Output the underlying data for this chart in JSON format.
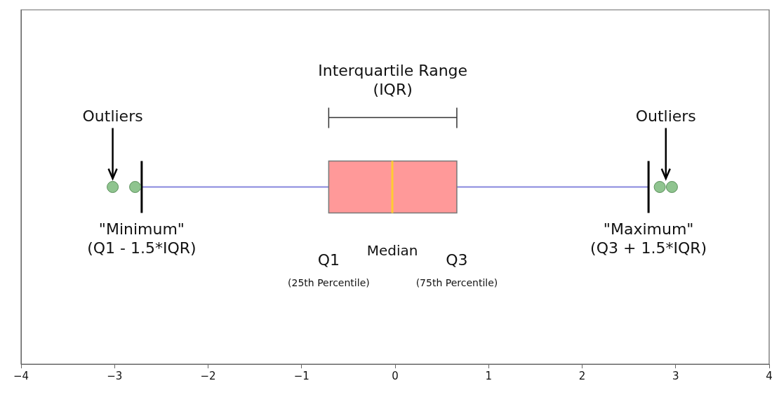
{
  "chart_data": {
    "type": "box",
    "orientation": "horizontal",
    "categories": [
      null
    ],
    "boxes": [
      {
        "low": -2.71,
        "q1": -0.71,
        "median": -0.03,
        "q3": 0.66,
        "high": 2.71,
        "outliers": [
          -3.02,
          -2.78,
          2.83,
          2.96
        ]
      }
    ],
    "color": "#ff9999",
    "marker": "circle",
    "grid": false,
    "tick_labels": "x",
    "xlim": [
      -4,
      4
    ],
    "xticks": [
      {
        "value": -4,
        "label": "−4"
      },
      {
        "value": -3,
        "label": "−3"
      },
      {
        "value": -2,
        "label": "−2"
      },
      {
        "value": -1,
        "label": "−1"
      },
      0,
      1,
      2,
      3,
      4
    ],
    "annotations": [
      "Outliers",
      "Outliers",
      "Interquartile Range (IQR)",
      "\"Minimum\" (Q1 - 1.5*IQR)",
      "\"Maximum\" (Q3 + 1.5*IQR)",
      "Q1",
      "(25th Percentile)",
      "Median",
      "Q3",
      "(75th Percentile)"
    ]
  }
}
